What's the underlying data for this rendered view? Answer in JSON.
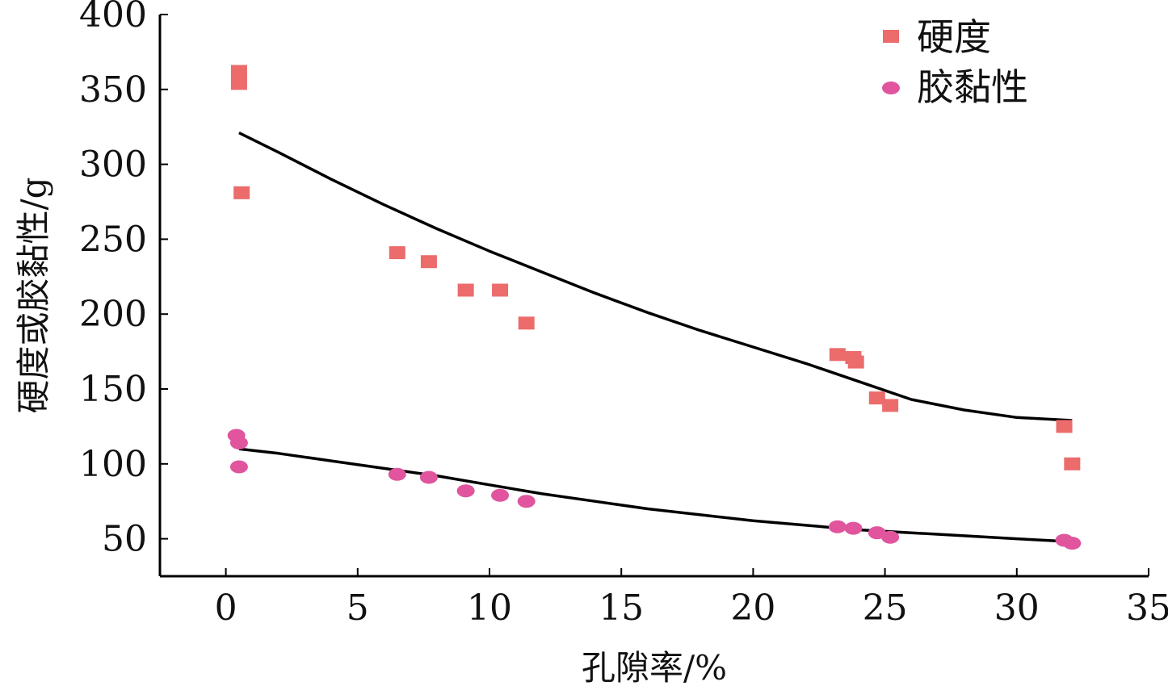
{
  "chart_data": {
    "type": "scatter",
    "xlabel": "孔隙率/%",
    "ylabel": "硬度或胶黏性/g",
    "xlim": [
      -2.5,
      35
    ],
    "ylim": [
      25,
      400
    ],
    "xticks": [
      0,
      5,
      10,
      15,
      20,
      25,
      30,
      35
    ],
    "yticks": [
      50,
      100,
      150,
      200,
      250,
      300,
      350,
      400
    ],
    "grid": false,
    "legend_position": "top-right",
    "series": [
      {
        "name": "硬度",
        "marker": "square",
        "color": "#ec6b6b",
        "x": [
          0.5,
          0.5,
          0.6,
          6.5,
          7.7,
          9.1,
          10.4,
          11.4,
          23.2,
          23.8,
          23.9,
          24.7,
          25.2,
          31.8,
          32.1
        ],
        "y": [
          362,
          354,
          281,
          241,
          235,
          216,
          216,
          194,
          173,
          171,
          168,
          144,
          139,
          125,
          100
        ]
      },
      {
        "name": "胶黏性",
        "marker": "ellipse",
        "color": "#e0559e",
        "x": [
          0.4,
          0.5,
          0.5,
          6.5,
          7.7,
          9.1,
          10.4,
          11.4,
          23.2,
          23.8,
          24.7,
          25.2,
          31.8,
          32.1
        ],
        "y": [
          119,
          114,
          98,
          93,
          91,
          82,
          79,
          75,
          58,
          57,
          54,
          51,
          49,
          47
        ]
      }
    ],
    "fit_curves": [
      {
        "color": "#000000",
        "x": [
          0.5,
          2,
          4,
          6,
          8,
          10,
          12,
          14,
          16,
          18,
          20,
          22,
          24,
          26,
          28,
          30,
          32.1
        ],
        "y": [
          321,
          308,
          290,
          273,
          257,
          242,
          228,
          214,
          201,
          189,
          178,
          167,
          155,
          143,
          136,
          131,
          129
        ]
      },
      {
        "color": "#000000",
        "x": [
          0.5,
          2,
          4,
          6,
          8,
          10,
          12,
          14,
          16,
          18,
          20,
          22,
          24,
          26,
          28,
          30,
          32.1
        ],
        "y": [
          110,
          107,
          102,
          97,
          92,
          86,
          80,
          75,
          70,
          66,
          62,
          59,
          56,
          54,
          52,
          50,
          48
        ]
      }
    ]
  }
}
